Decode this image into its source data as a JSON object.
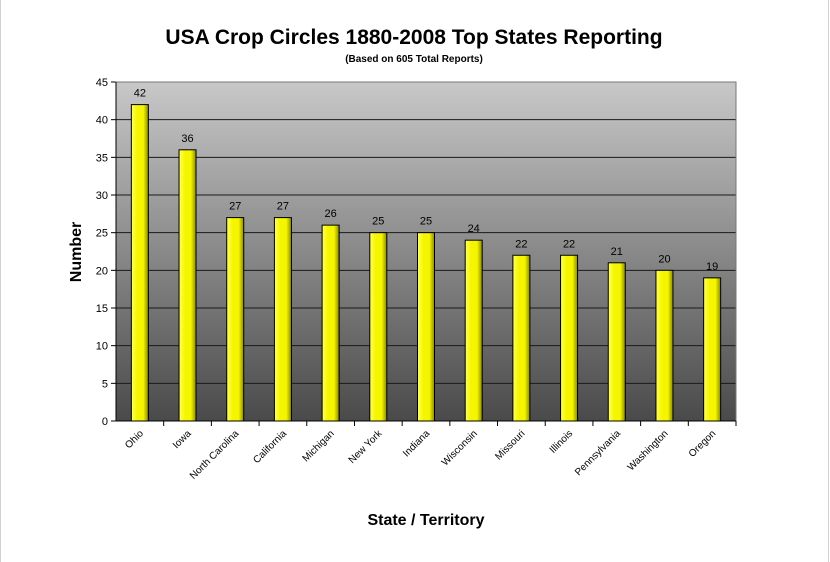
{
  "chart_data": {
    "type": "bar",
    "title": "USA Crop Circles 1880-2008 Top States Reporting",
    "subtitle": "(Based on 605 Total Reports)",
    "xlabel": "State / Territory",
    "ylabel": "Number",
    "categories": [
      "Ohio",
      "Iowa",
      "North Carolina",
      "California",
      "Michigan",
      "New York",
      "Indiana",
      "Wisconsin",
      "Missouri",
      "Illinois",
      "Pennsylvania",
      "Washington",
      "Oregon"
    ],
    "values": [
      42,
      36,
      27,
      27,
      26,
      25,
      25,
      24,
      22,
      22,
      21,
      20,
      19
    ],
    "ylim": [
      0,
      45
    ],
    "yticks": [
      0,
      5,
      10,
      15,
      20,
      25,
      30,
      35,
      40,
      45
    ],
    "grid": true,
    "legend": "none",
    "colors": {
      "bar_light": "#ffff66",
      "bar_mid": "#f5f500",
      "bar_dark": "#8a8a00",
      "plot_top": "#c8c8c8",
      "plot_bottom": "#4a4a4a",
      "gridline": "#1a1a1a"
    }
  }
}
